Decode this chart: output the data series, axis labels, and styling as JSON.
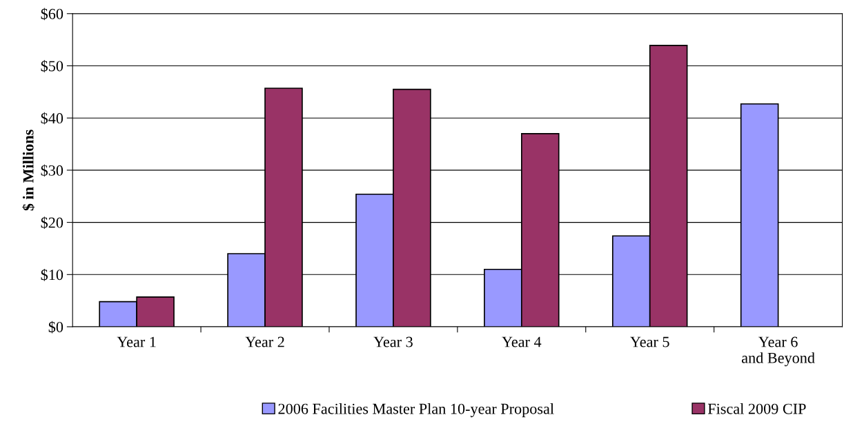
{
  "chart_data": {
    "type": "bar",
    "ylabel": "$ in Millions",
    "categories": [
      "Year 1",
      "Year 2",
      "Year 3",
      "Year 4",
      "Year 5",
      "Year 6\nand Beyond"
    ],
    "series": [
      {
        "name": "2006 Facilities Master Plan 10-year Proposal",
        "color": "#9999ff",
        "values": [
          4.8,
          14.0,
          25.4,
          11.0,
          17.4,
          42.7
        ]
      },
      {
        "name": "Fiscal 2009 CIP",
        "color": "#993366",
        "values": [
          5.7,
          45.7,
          45.5,
          37.0,
          53.9,
          null
        ]
      }
    ],
    "ylim": [
      0,
      60
    ],
    "yticks": [
      {
        "value": 0,
        "label": "$0"
      },
      {
        "value": 10,
        "label": "$10"
      },
      {
        "value": 20,
        "label": "$20"
      },
      {
        "value": 30,
        "label": "$30"
      },
      {
        "value": 40,
        "label": "$40"
      },
      {
        "value": 50,
        "label": "$50"
      },
      {
        "value": 60,
        "label": "$60"
      }
    ],
    "grid": "y",
    "legend": "bottom"
  }
}
